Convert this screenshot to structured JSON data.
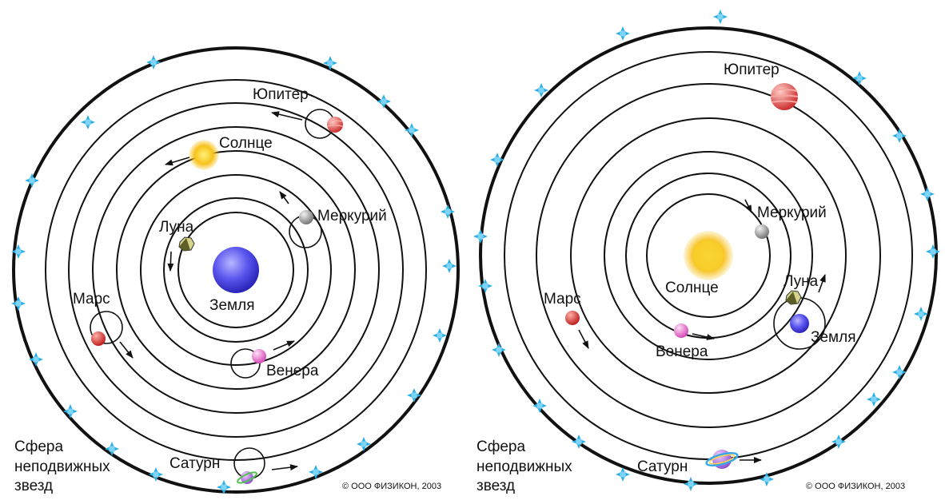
{
  "colors": {
    "background": "#ffffff",
    "orbit": "#111111",
    "star": "#27aee5",
    "earth": "#4b46e8",
    "sun": "#f6c21a",
    "mercury": "#9a9a9a",
    "venus": "#e77ad0",
    "mars": "#d83a3a",
    "jupiter": "#d84a4a",
    "saturn": "#9b6bd8",
    "moon": "#6b6b2a"
  },
  "diagrams": [
    {
      "id": "geocentric",
      "center_body": {
        "label": "Земля",
        "icon": "earth-icon"
      },
      "bodies": [
        {
          "key": "moon",
          "label": "Луна",
          "icon": "moon-icon"
        },
        {
          "key": "mercury",
          "label": "Меркурий",
          "icon": "mercury-icon"
        },
        {
          "key": "venus",
          "label": "Венера",
          "icon": "venus-icon"
        },
        {
          "key": "sun",
          "label": "Солнце",
          "icon": "sun-icon"
        },
        {
          "key": "mars",
          "label": "Марс",
          "icon": "mars-icon"
        },
        {
          "key": "jupiter",
          "label": "Юпитер",
          "icon": "jupiter-icon"
        },
        {
          "key": "saturn",
          "label": "Сатурн",
          "icon": "saturn-icon"
        }
      ],
      "sphere_label": [
        "Сфера",
        "неподвижных",
        "звезд"
      ],
      "copyright": "© ООО ФИЗИКОН, 2003"
    },
    {
      "id": "heliocentric",
      "center_body": {
        "label": "Солнце",
        "icon": "sun-icon"
      },
      "bodies": [
        {
          "key": "mercury",
          "label": "Меркурий",
          "icon": "mercury-icon"
        },
        {
          "key": "venus",
          "label": "Венера",
          "icon": "venus-icon"
        },
        {
          "key": "earth",
          "label": "Земля",
          "icon": "earth-icon"
        },
        {
          "key": "moon",
          "label": "Луна",
          "icon": "moon-icon"
        },
        {
          "key": "mars",
          "label": "Марс",
          "icon": "mars-icon"
        },
        {
          "key": "jupiter",
          "label": "Юпитер",
          "icon": "jupiter-icon"
        },
        {
          "key": "saturn",
          "label": "Сатурн",
          "icon": "saturn-icon"
        }
      ],
      "sphere_label": [
        "Сфера",
        "неподвижных",
        "звезд"
      ],
      "copyright": "© ООО ФИЗИКОН, 2003"
    }
  ]
}
